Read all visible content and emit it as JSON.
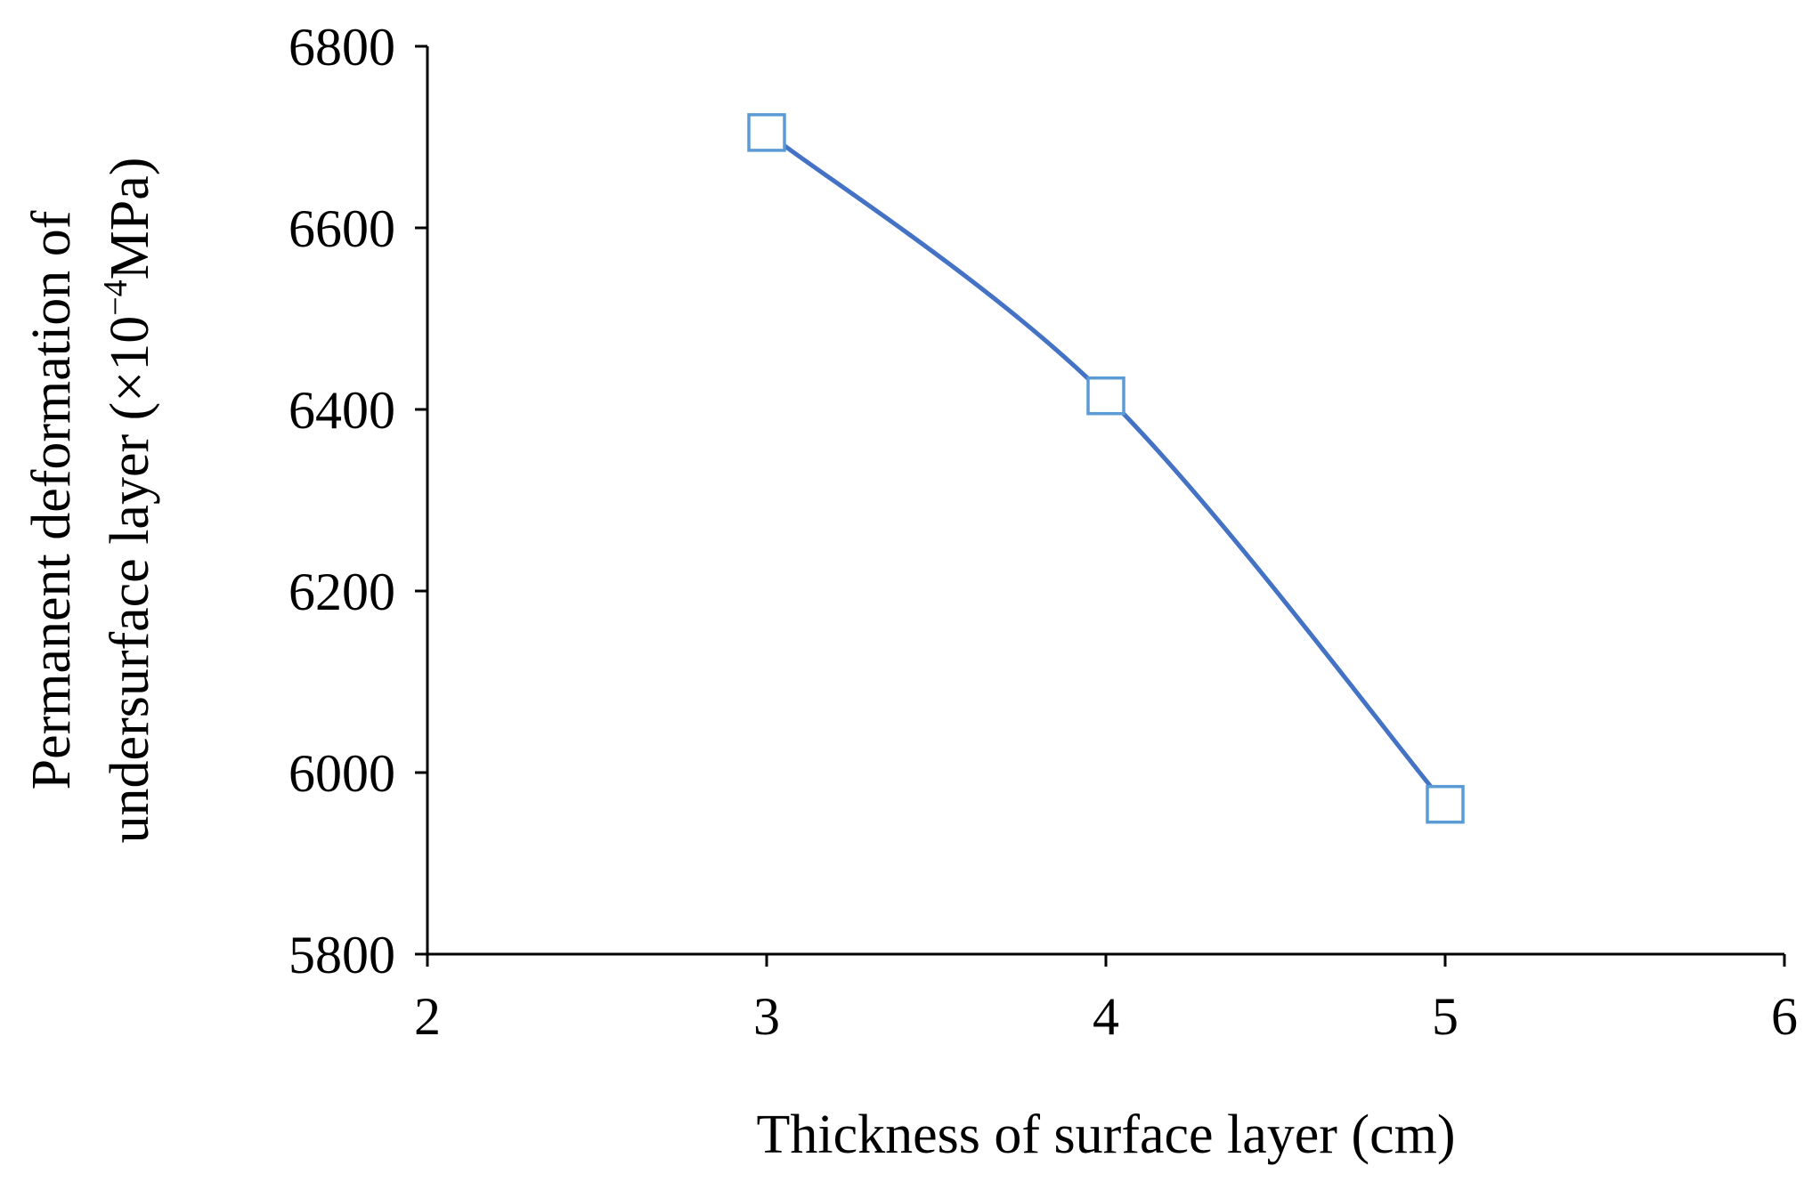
{
  "chart_data": {
    "type": "line",
    "title": "",
    "xlabel": "Thickness of surface layer (cm)",
    "ylabel_line1": "Permanent deformation of",
    "ylabel_line2_prefix": "undersurface layer (×10",
    "ylabel_line2_sup": "−4",
    "ylabel_line2_suffix": "MPa)",
    "xlim": [
      2,
      6
    ],
    "ylim": [
      5800,
      6800
    ],
    "x_ticks": [
      2,
      3,
      4,
      5,
      6
    ],
    "y_ticks": [
      5800,
      6000,
      6200,
      6400,
      6600,
      6800
    ],
    "grid": false,
    "series": [
      {
        "x": [
          3,
          4,
          5
        ],
        "y": [
          6705,
          6415,
          5965
        ],
        "color": "#4472C4",
        "marker": "square-open",
        "marker_color": "#5B9BD5",
        "smooth": true
      }
    ]
  }
}
